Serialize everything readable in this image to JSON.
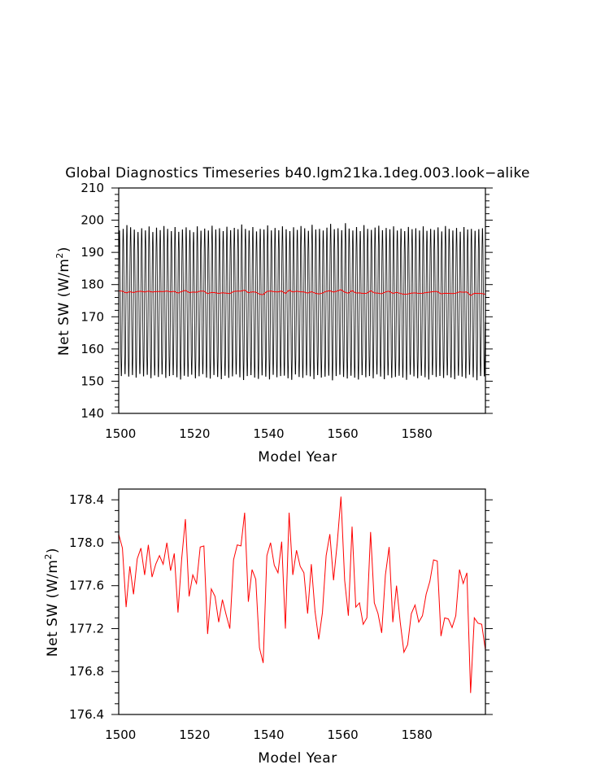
{
  "figure": {
    "title": "Global Diagnostics Timeseries b40.lgm21ka.1deg.003.look−alike"
  },
  "chart_data": [
    {
      "type": "line",
      "xlabel": "Model Year",
      "ylabel_main": "Net SW  (W/m",
      "ylabel_sup": "2",
      "ylabel_close": ")",
      "xlim": [
        1499.5,
        1598.5
      ],
      "ylim": [
        140,
        210
      ],
      "x_ticks": [
        1500,
        1520,
        1540,
        1560,
        1580
      ],
      "x_tick_labels": [
        "1500",
        "1520",
        "1540",
        "1560",
        "1580"
      ],
      "y_ticks": [
        140,
        150,
        160,
        170,
        180,
        190,
        200,
        210
      ],
      "y_tick_labels": [
        "140",
        "150",
        "160",
        "170",
        "180",
        "190",
        "200",
        "210"
      ],
      "series": [
        {
          "color": "#000000",
          "x_start": 1499.5,
          "x_step": 0.0833333,
          "cycles": 99,
          "annual_max": [
            197.5,
            198.0,
            199.2,
            198.5,
            197.8,
            197.0,
            198.2,
            197.5,
            198.8,
            197.0,
            198.4,
            197.6,
            198.9,
            198.0,
            197.3,
            198.6,
            197.1,
            197.8,
            198.5,
            197.6,
            197.0,
            198.8,
            197.4,
            198.1,
            197.5,
            199.0,
            197.8,
            198.2,
            197.3,
            198.7,
            197.6,
            198.3,
            197.9,
            199.4,
            198.0,
            197.5,
            198.6,
            197.2,
            198.0,
            197.8,
            199.1,
            197.5,
            198.3,
            197.6,
            198.8,
            197.9,
            197.3,
            198.5,
            197.7,
            198.9,
            198.2,
            197.4,
            199.3,
            197.8,
            198.0,
            197.5,
            198.4,
            199.6,
            197.9,
            198.2,
            197.6,
            199.8,
            198.1,
            197.5,
            198.6,
            197.3,
            199.2,
            198.0,
            197.7,
            198.4,
            199.0,
            197.6,
            198.3,
            197.9,
            198.8,
            197.5,
            198.1,
            197.3,
            198.6,
            197.9,
            198.2,
            197.5,
            198.8,
            197.4,
            198.0,
            197.7,
            198.5,
            197.2,
            198.9,
            198.0,
            197.5,
            198.3,
            197.1,
            198.6,
            197.8,
            198.0,
            197.4,
            197.9,
            198.2
          ],
          "annual_min": [
            150.9,
            151.5,
            150.7,
            151.2,
            150.4,
            151.6,
            150.8,
            151.3,
            150.2,
            151.1,
            150.6,
            151.4,
            150.3,
            150.9,
            151.2,
            150.5,
            149.8,
            151.0,
            150.7,
            151.3,
            150.2,
            150.8,
            151.5,
            150.4,
            150.1,
            151.2,
            150.6,
            149.9,
            151.0,
            150.3,
            150.8,
            151.4,
            150.5,
            149.6,
            150.9,
            151.2,
            150.4,
            150.0,
            151.1,
            150.7,
            149.8,
            151.3,
            150.5,
            150.9,
            151.0,
            150.2,
            149.7,
            151.4,
            150.6,
            150.3,
            151.1,
            150.8,
            149.9,
            151.2,
            150.4,
            150.7,
            151.0,
            149.5,
            150.9,
            151.3,
            150.6,
            150.1,
            151.0,
            150.4,
            149.8,
            151.2,
            150.5,
            150.9,
            150.2,
            151.4,
            150.7,
            149.9,
            151.1,
            150.3,
            150.6,
            151.0,
            150.4,
            149.7,
            151.3,
            150.8,
            150.2,
            151.0,
            150.5,
            149.8,
            151.2,
            150.6,
            150.9,
            150.3,
            151.1,
            150.4,
            149.9,
            151.0,
            150.7,
            150.2,
            151.3,
            150.5,
            149.6,
            150.9,
            150.8
          ]
        },
        {
          "color": "#ff0000",
          "source": "annual_mean"
        }
      ]
    },
    {
      "type": "line",
      "xlabel": "Model Year",
      "ylabel_main": "Net SW  (W/m",
      "ylabel_sup": "2",
      "ylabel_close": ")",
      "xlim": [
        1499.5,
        1598.5
      ],
      "ylim": [
        176.4,
        178.5
      ],
      "x_ticks": [
        1500,
        1520,
        1540,
        1560,
        1580
      ],
      "x_tick_labels": [
        "1500",
        "1520",
        "1540",
        "1560",
        "1580"
      ],
      "y_ticks": [
        176.4,
        176.8,
        177.2,
        177.6,
        178.0,
        178.4
      ],
      "y_tick_labels": [
        "176.4",
        "176.8",
        "177.2",
        "177.6",
        "178.0",
        "178.4"
      ],
      "series": [
        {
          "color": "#ff0000",
          "x_start": 1499.5,
          "x_step": 1,
          "values": [
            178.08,
            177.95,
            177.4,
            177.78,
            177.52,
            177.85,
            177.95,
            177.7,
            177.98,
            177.68,
            177.8,
            177.88,
            177.8,
            178.0,
            177.74,
            177.9,
            177.35,
            177.85,
            178.22,
            177.5,
            177.7,
            177.62,
            177.96,
            177.97,
            177.15,
            177.57,
            177.5,
            177.26,
            177.47,
            177.33,
            177.2,
            177.84,
            177.98,
            177.97,
            178.28,
            177.45,
            177.75,
            177.66,
            177.02,
            176.88,
            177.88,
            178.0,
            177.79,
            177.72,
            178.01,
            177.2,
            178.28,
            177.7,
            177.93,
            177.78,
            177.72,
            177.34,
            177.8,
            177.36,
            177.1,
            177.35,
            177.88,
            178.08,
            177.65,
            178.0,
            178.43,
            177.65,
            177.32,
            178.15,
            177.4,
            177.44,
            177.24,
            177.3,
            178.1,
            177.44,
            177.34,
            177.16,
            177.7,
            177.96,
            177.26,
            177.6,
            177.26,
            176.98,
            177.05,
            177.34,
            177.42,
            177.26,
            177.32,
            177.52,
            177.64,
            177.84,
            177.83,
            177.13,
            177.3,
            177.29,
            177.21,
            177.32,
            177.75,
            177.62,
            177.72,
            176.6,
            177.3,
            177.25,
            177.24,
            177.0
          ]
        }
      ]
    }
  ]
}
